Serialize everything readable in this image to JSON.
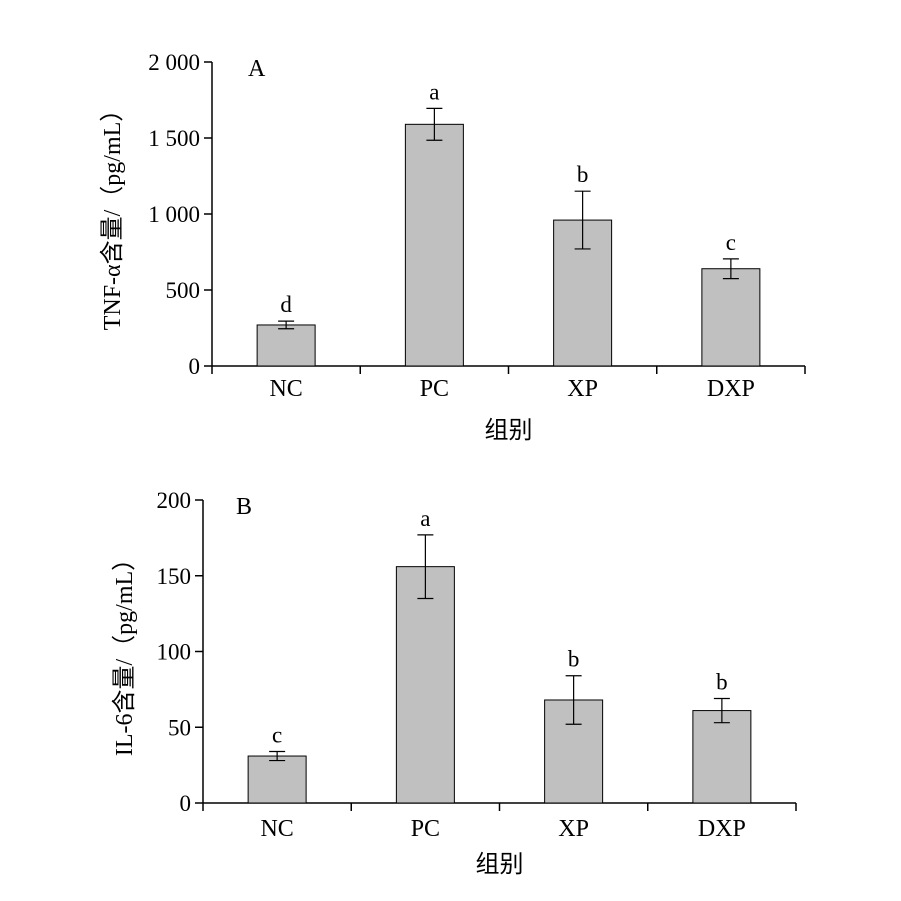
{
  "chart_data": [
    {
      "type": "bar",
      "panel_label": "A",
      "categories": [
        "NC",
        "PC",
        "XP",
        "DXP"
      ],
      "values": [
        270,
        1590,
        960,
        640
      ],
      "errors": [
        25,
        105,
        190,
        65
      ],
      "significance": [
        "d",
        "a",
        "b",
        "c"
      ],
      "ylabel": "TNF-α含量/（pg/mL）",
      "xlabel": "组别",
      "yticks": [
        0,
        500,
        1000,
        1500,
        2000
      ],
      "ytick_labels": [
        "0",
        "500",
        "1 000",
        "1 500",
        "2 000"
      ],
      "ylim": [
        0,
        2000
      ],
      "bar_color": "#c0c0c0",
      "grid": false
    },
    {
      "type": "bar",
      "panel_label": "B",
      "categories": [
        "NC",
        "PC",
        "XP",
        "DXP"
      ],
      "values": [
        31,
        156,
        68,
        61
      ],
      "errors": [
        3,
        21,
        16,
        8
      ],
      "significance": [
        "c",
        "a",
        "b",
        "b"
      ],
      "ylabel": "IL-6含量/（pg/mL）",
      "xlabel": "组别",
      "yticks": [
        0,
        50,
        100,
        150,
        200
      ],
      "ytick_labels": [
        "0",
        "50",
        "100",
        "150",
        "200"
      ],
      "ylim": [
        0,
        200
      ],
      "bar_color": "#c0c0c0",
      "grid": false
    }
  ]
}
